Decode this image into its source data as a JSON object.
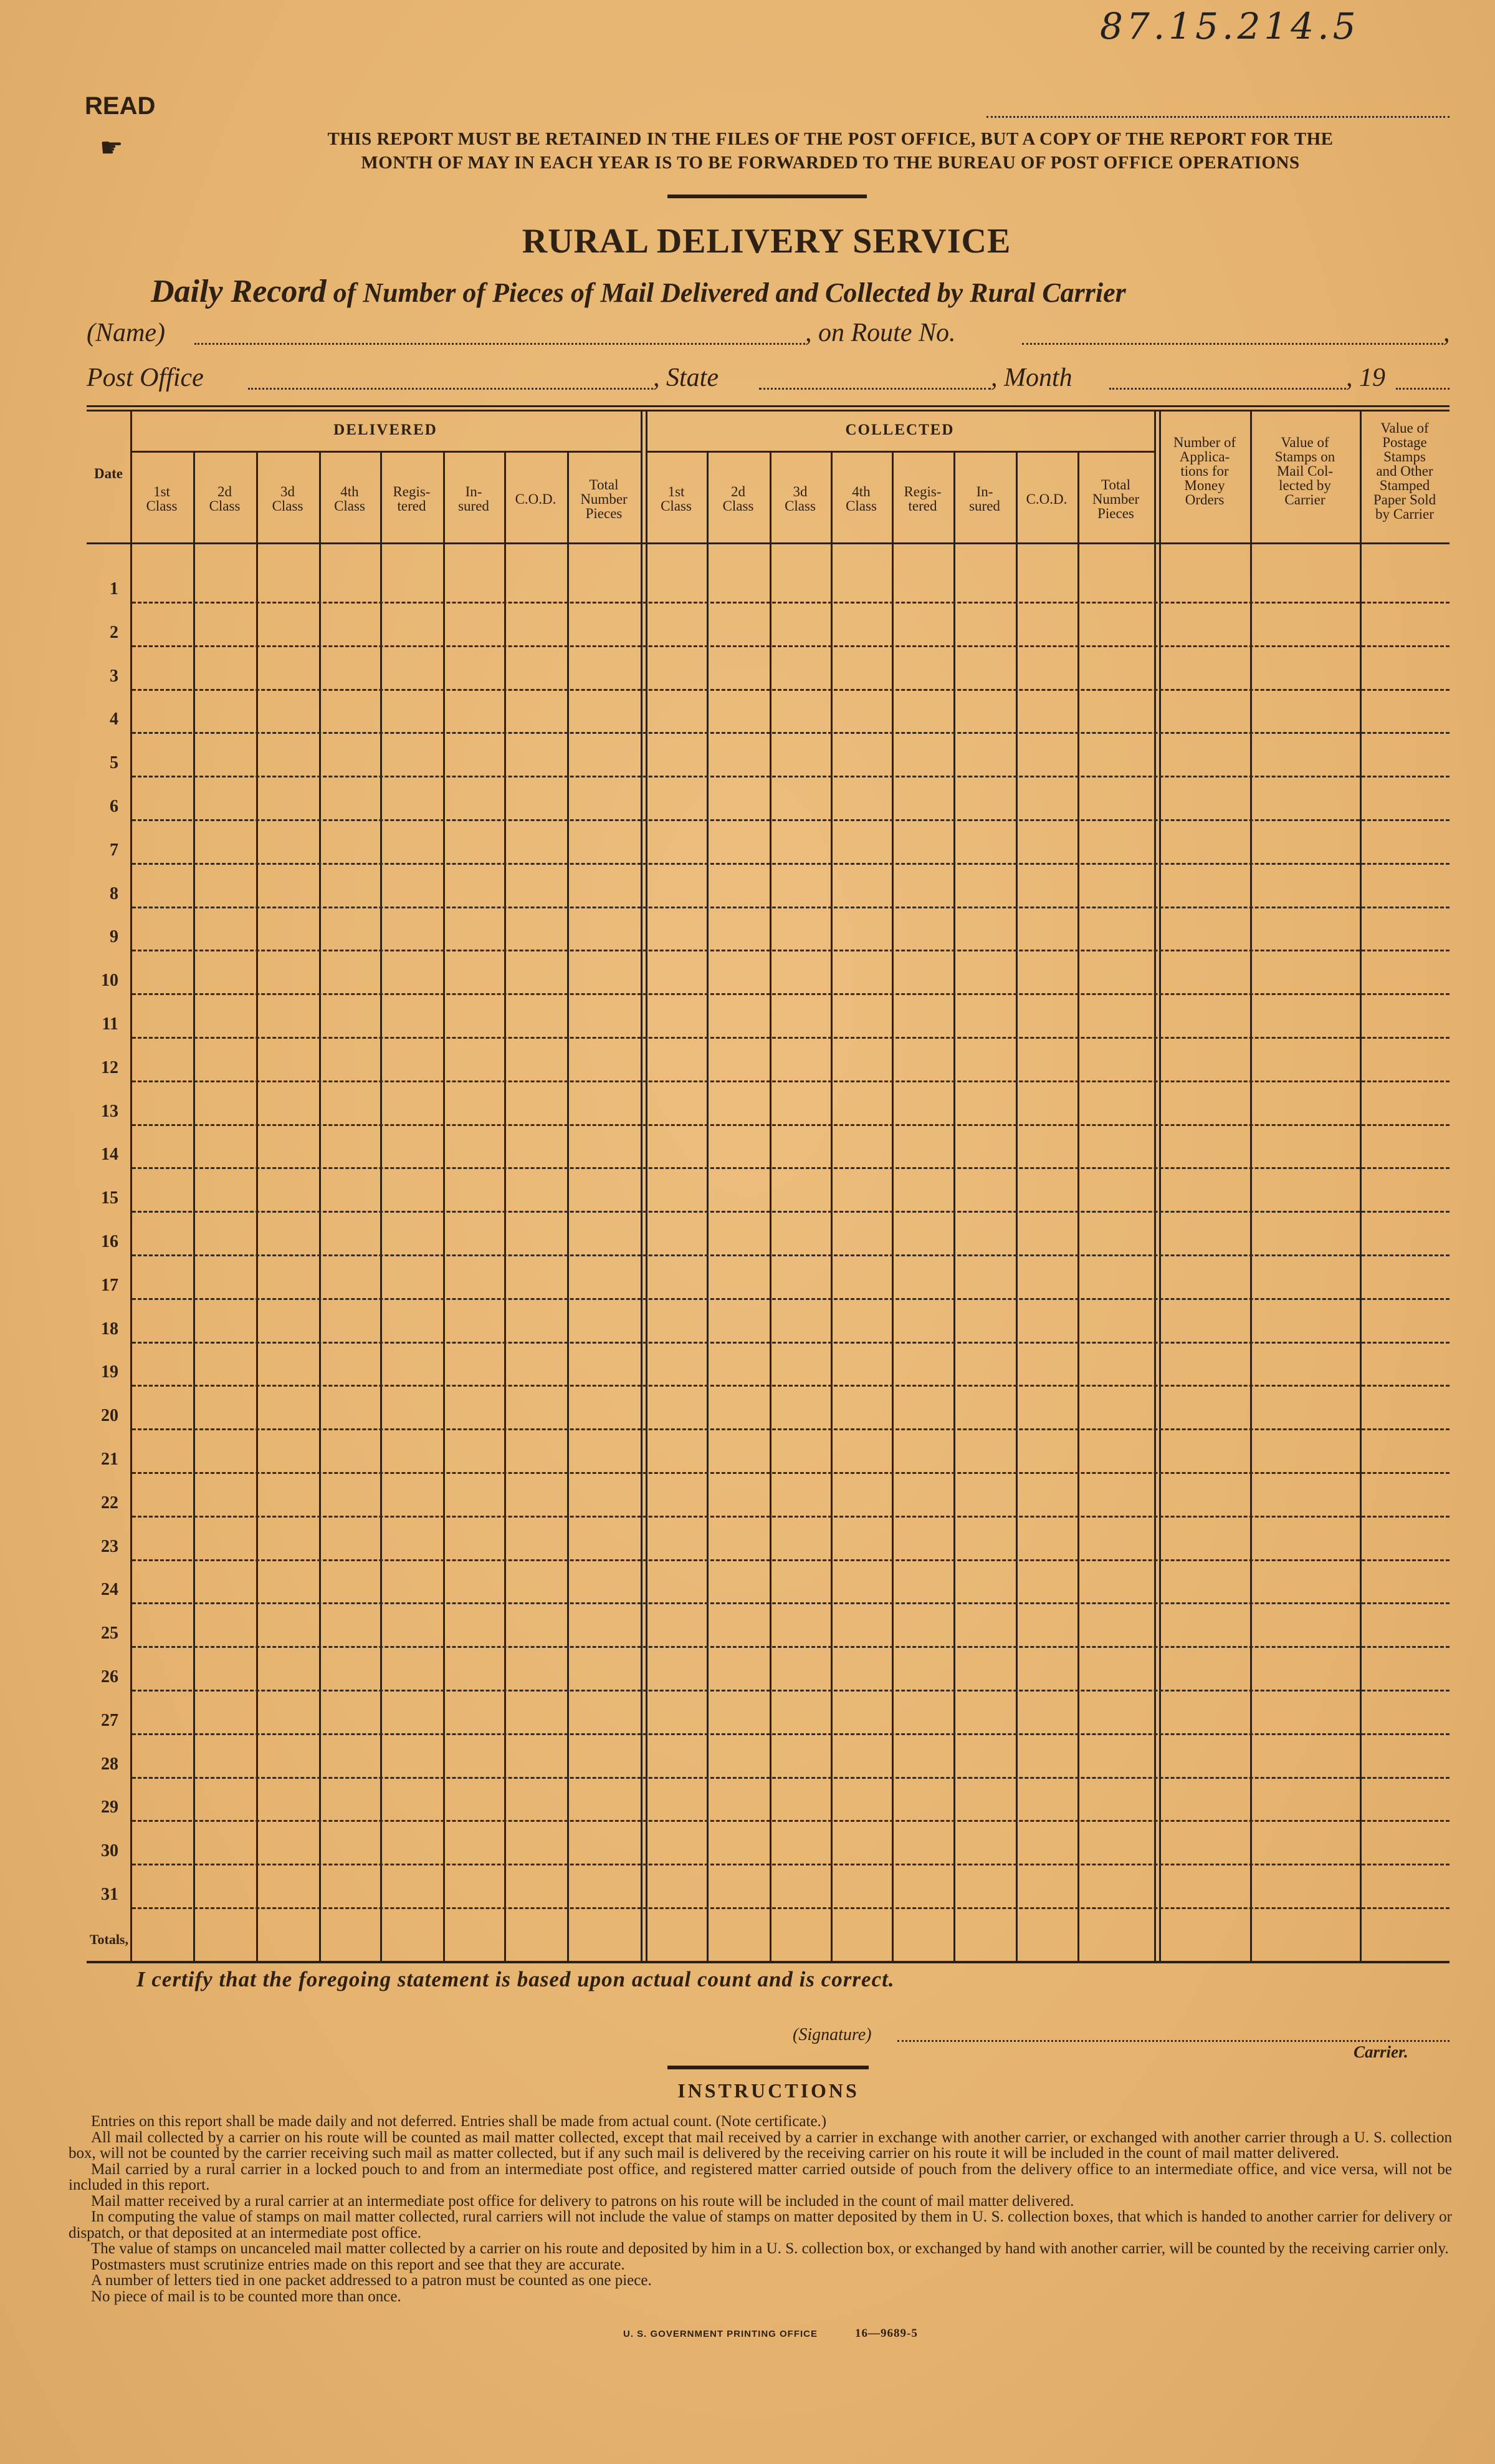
{
  "handwritten_number": "87.15.214.5",
  "read_label": "READ",
  "pointer_icon": "pointing-hand-icon",
  "notice": [
    "THIS REPORT MUST BE RETAINED IN THE FILES OF THE POST OFFICE, BUT A COPY OF THE REPORT FOR THE",
    "MONTH OF MAY IN EACH YEAR IS TO BE FORWARDED TO THE BUREAU OF POST OFFICE OPERATIONS"
  ],
  "title": "RURAL DELIVERY SERVICE",
  "subtitle": {
    "lead": "Daily Record",
    "rest": " of Number of Pieces of Mail Delivered and Collected by Rural Carrier"
  },
  "fields": {
    "name": "(Name)",
    "route": ", on Route No.",
    "route_end": ",",
    "post_office": "Post Office",
    "state": ", State",
    "month": ", Month",
    "year": ", 19"
  },
  "table": {
    "date_header": "Date",
    "delivered_header": "DELIVERED",
    "collected_header": "COLLECTED",
    "delivered_columns": [
      "1st\nClass",
      "2d\nClass",
      "3d\nClass",
      "4th\nClass",
      "Regis-\ntered",
      "In-\nsured",
      "C.O.D.",
      "Total\nNumber\nPieces"
    ],
    "collected_columns": [
      "1st\nClass",
      "2d\nClass",
      "3d\nClass",
      "4th\nClass",
      "Regis-\ntered",
      "In-\nsured",
      "C.O.D.",
      "Total\nNumber\nPieces"
    ],
    "extra_columns": [
      "Number of\nApplica-\ntions for\nMoney\nOrders",
      "Value of\nStamps on\nMail Col-\nlected by\nCarrier",
      "Value of\nPostage\nStamps\nand Other\nStamped\nPaper Sold\nby Carrier"
    ],
    "rows": [
      "1",
      "2",
      "3",
      "4",
      "5",
      "6",
      "7",
      "8",
      "9",
      "10",
      "11",
      "12",
      "13",
      "14",
      "15",
      "16",
      "17",
      "18",
      "19",
      "20",
      "21",
      "22",
      "23",
      "24",
      "25",
      "26",
      "27",
      "28",
      "29",
      "30",
      "31"
    ],
    "totals_label": "Totals,"
  },
  "certification": "I certify that the foregoing statement is based upon actual count and is correct.",
  "signature_label": "(Signature)",
  "carrier_label": "Carrier.",
  "instructions_title": "INSTRUCTIONS",
  "instructions": [
    "Entries on this report shall be made daily and not deferred.   Entries shall be made from actual count.   (Note certificate.)",
    "All mail collected by a carrier on his route will be counted as mail matter collected, except that mail received by a carrier in exchange with another carrier, or exchanged with another carrier through a U. S. collection box, will not be counted by the carrier receiving such mail as matter collected, but if any such mail is delivered by the receiving carrier on his route it will be included in the count of mail matter delivered.",
    "Mail carried by a rural carrier in a locked pouch to and from an intermediate post office, and registered matter carried outside of pouch from the delivery office to an intermediate office, and vice versa, will not be included in this report.",
    "Mail matter received by a rural carrier at an intermediate post office for delivery to patrons on his route will be included in the count of mail matter delivered.",
    "In computing the value of stamps on mail matter collected, rural carriers will not include the value of stamps on matter deposited by them in U. S. collection boxes, that which is handed to another carrier for delivery or dispatch, or that deposited at an intermediate post office.",
    "The value of stamps on uncanceled mail matter collected by a carrier on his route and deposited by him in a U. S. collection box, or exchanged by hand with another carrier, will be counted by the receiving carrier only.",
    "Postmasters must scrutinize entries made on this report and see that they are accurate.",
    "A number of letters tied in one packet addressed to a patron must be counted as one piece.",
    "No piece of mail is to be counted more than once."
  ],
  "footer": {
    "printer": "U. S. GOVERNMENT PRINTING OFFICE",
    "form_number": "16—9689-5"
  },
  "colors": {
    "paper": "#e7b673",
    "ink": "#2e2114"
  }
}
